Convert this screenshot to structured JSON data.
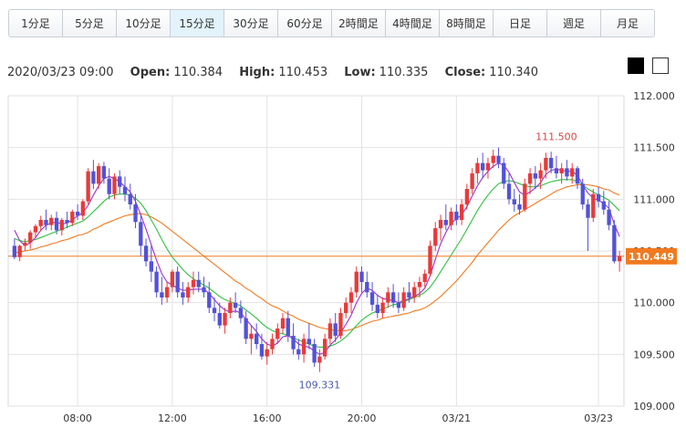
{
  "timeframe_tabs": [
    {
      "label": "1分足"
    },
    {
      "label": "5分足"
    },
    {
      "label": "10分足"
    },
    {
      "label": "15分足"
    },
    {
      "label": "30分足"
    },
    {
      "label": "60分足"
    },
    {
      "label": "2時間足"
    },
    {
      "label": "4時間足"
    },
    {
      "label": "8時間足"
    },
    {
      "label": "日足"
    },
    {
      "label": "週足"
    },
    {
      "label": "月足"
    }
  ],
  "active_tab_index": 3,
  "ohlc": {
    "datetime": "2020/03/23 09:00",
    "open_label": "Open:",
    "open": "110.384",
    "high_label": "High:",
    "high": "110.453",
    "low_label": "Low:",
    "low": "110.335",
    "close_label": "Close:",
    "close": "110.340"
  },
  "theme_buttons": {
    "dark": "#000000",
    "light": "#ffffff"
  },
  "chart_data": {
    "type": "candlestick",
    "ylim": [
      109.0,
      112.0
    ],
    "y_ticks": [
      "112.000",
      "111.500",
      "111.000",
      "110.500",
      "110.000",
      "109.500",
      "109.000"
    ],
    "x_ticks": [
      "08:00",
      "12:00",
      "16:00",
      "20:00",
      "03/21",
      "03/23"
    ],
    "current_price": "110.449",
    "annotations": [
      {
        "text": "111.500",
        "bar": 103,
        "y": 111.5
      },
      {
        "text": "109.331",
        "bar": 58,
        "y": 109.331
      }
    ],
    "colors": {
      "up": "#e83a3a",
      "down": "#5252d8",
      "current_line": "#f07a20",
      "ma_fast": "#9b30d0",
      "ma_mid": "#30c040",
      "ma_slow": "#f07a20"
    },
    "candles": [
      [
        110.55,
        110.62,
        110.42,
        110.44
      ],
      [
        110.44,
        110.56,
        110.4,
        110.55
      ],
      [
        110.55,
        110.62,
        110.5,
        110.58
      ],
      [
        110.58,
        110.7,
        110.52,
        110.68
      ],
      [
        110.68,
        110.76,
        110.62,
        110.74
      ],
      [
        110.74,
        110.84,
        110.69,
        110.8
      ],
      [
        110.8,
        110.9,
        110.7,
        110.75
      ],
      [
        110.75,
        110.85,
        110.7,
        110.82
      ],
      [
        110.82,
        110.88,
        110.66,
        110.7
      ],
      [
        110.7,
        110.82,
        110.65,
        110.8
      ],
      [
        110.8,
        110.88,
        110.72,
        110.77
      ],
      [
        110.77,
        110.9,
        110.74,
        110.88
      ],
      [
        110.88,
        110.95,
        110.8,
        110.84
      ],
      [
        110.84,
        111.0,
        110.8,
        110.98
      ],
      [
        110.98,
        111.3,
        110.95,
        111.27
      ],
      [
        111.27,
        111.38,
        111.1,
        111.15
      ],
      [
        111.15,
        111.35,
        111.1,
        111.32
      ],
      [
        111.32,
        111.36,
        111.15,
        111.2
      ],
      [
        111.2,
        111.3,
        111.0,
        111.05
      ],
      [
        111.05,
        111.25,
        111.0,
        111.22
      ],
      [
        111.22,
        111.28,
        111.05,
        111.12
      ],
      [
        111.12,
        111.22,
        110.98,
        111.05
      ],
      [
        111.05,
        111.15,
        110.9,
        110.95
      ],
      [
        110.95,
        111.05,
        110.72,
        110.78
      ],
      [
        110.78,
        110.85,
        110.45,
        110.55
      ],
      [
        110.55,
        110.62,
        110.35,
        110.4
      ],
      [
        110.4,
        110.55,
        110.2,
        110.3
      ],
      [
        110.3,
        110.35,
        110.05,
        110.1
      ],
      [
        110.1,
        110.25,
        109.98,
        110.05
      ],
      [
        110.05,
        110.2,
        110.0,
        110.15
      ],
      [
        110.15,
        110.32,
        110.1,
        110.3
      ],
      [
        110.3,
        110.35,
        110.05,
        110.1
      ],
      [
        110.1,
        110.2,
        109.98,
        110.05
      ],
      [
        110.05,
        110.2,
        110.0,
        110.15
      ],
      [
        110.15,
        110.3,
        110.08,
        110.22
      ],
      [
        110.22,
        110.3,
        110.1,
        110.15
      ],
      [
        110.15,
        110.25,
        110.05,
        110.1
      ],
      [
        110.1,
        110.2,
        109.9,
        109.95
      ],
      [
        109.95,
        110.05,
        109.82,
        109.9
      ],
      [
        109.9,
        110.0,
        109.75,
        109.78
      ],
      [
        109.78,
        109.95,
        109.7,
        109.9
      ],
      [
        109.9,
        110.05,
        109.85,
        110.0
      ],
      [
        110.0,
        110.1,
        109.9,
        109.95
      ],
      [
        109.95,
        110.02,
        109.8,
        109.85
      ],
      [
        109.85,
        109.92,
        109.6,
        109.65
      ],
      [
        109.65,
        109.78,
        109.5,
        109.7
      ],
      [
        109.7,
        109.8,
        109.55,
        109.6
      ],
      [
        109.6,
        109.7,
        109.45,
        109.48
      ],
      [
        109.48,
        109.62,
        109.4,
        109.55
      ],
      [
        109.55,
        109.7,
        109.5,
        109.65
      ],
      [
        109.65,
        109.8,
        109.6,
        109.75
      ],
      [
        109.75,
        109.9,
        109.7,
        109.85
      ],
      [
        109.85,
        109.92,
        109.62,
        109.68
      ],
      [
        109.68,
        109.8,
        109.5,
        109.55
      ],
      [
        109.55,
        109.65,
        109.45,
        109.5
      ],
      [
        109.5,
        109.7,
        109.42,
        109.65
      ],
      [
        109.65,
        109.8,
        109.55,
        109.6
      ],
      [
        109.6,
        109.65,
        109.38,
        109.42
      ],
      [
        109.42,
        109.55,
        109.331,
        109.48
      ],
      [
        109.48,
        109.7,
        109.45,
        109.65
      ],
      [
        109.65,
        109.85,
        109.6,
        109.8
      ],
      [
        109.8,
        109.9,
        109.62,
        109.68
      ],
      [
        109.68,
        109.95,
        109.65,
        109.9
      ],
      [
        109.9,
        110.05,
        109.85,
        110.0
      ],
      [
        110.0,
        110.15,
        109.9,
        110.1
      ],
      [
        110.1,
        110.35,
        110.05,
        110.3
      ],
      [
        110.3,
        110.35,
        110.1,
        110.2
      ],
      [
        110.2,
        110.3,
        110.05,
        110.1
      ],
      [
        110.1,
        110.2,
        109.92,
        109.98
      ],
      [
        109.98,
        110.08,
        109.85,
        109.9
      ],
      [
        109.9,
        110.05,
        109.85,
        110.0
      ],
      [
        110.0,
        110.15,
        109.95,
        110.1
      ],
      [
        110.1,
        110.18,
        109.95,
        110.0
      ],
      [
        110.0,
        110.1,
        109.9,
        109.95
      ],
      [
        109.95,
        110.15,
        109.92,
        110.1
      ],
      [
        110.1,
        110.2,
        110.0,
        110.05
      ],
      [
        110.05,
        110.2,
        110.0,
        110.15
      ],
      [
        110.15,
        110.25,
        110.05,
        110.2
      ],
      [
        110.2,
        110.32,
        110.15,
        110.28
      ],
      [
        110.28,
        110.6,
        110.25,
        110.55
      ],
      [
        110.55,
        110.78,
        110.5,
        110.72
      ],
      [
        110.72,
        110.85,
        110.6,
        110.8
      ],
      [
        110.8,
        110.95,
        110.7,
        110.75
      ],
      [
        110.75,
        110.92,
        110.7,
        110.88
      ],
      [
        110.88,
        110.95,
        110.75,
        110.8
      ],
      [
        110.8,
        111.0,
        110.75,
        110.95
      ],
      [
        110.95,
        111.15,
        110.9,
        111.1
      ],
      [
        111.1,
        111.3,
        111.05,
        111.25
      ],
      [
        111.25,
        111.4,
        111.15,
        111.35
      ],
      [
        111.35,
        111.45,
        111.2,
        111.28
      ],
      [
        111.28,
        111.4,
        111.2,
        111.35
      ],
      [
        111.35,
        111.48,
        111.3,
        111.42
      ],
      [
        111.42,
        111.5,
        111.3,
        111.35
      ],
      [
        111.35,
        111.4,
        111.1,
        111.15
      ],
      [
        111.15,
        111.25,
        110.95,
        111.0
      ],
      [
        111.0,
        111.1,
        110.88,
        110.95
      ],
      [
        110.95,
        111.05,
        110.85,
        110.9
      ],
      [
        110.9,
        111.2,
        110.88,
        111.15
      ],
      [
        111.15,
        111.3,
        111.05,
        111.25
      ],
      [
        111.25,
        111.32,
        111.1,
        111.2
      ],
      [
        111.2,
        111.35,
        111.1,
        111.28
      ],
      [
        111.28,
        111.45,
        111.2,
        111.4
      ],
      [
        111.4,
        111.46,
        111.25,
        111.3
      ],
      [
        111.3,
        111.42,
        111.2,
        111.25
      ],
      [
        111.25,
        111.35,
        111.15,
        111.3
      ],
      [
        111.3,
        111.38,
        111.18,
        111.22
      ],
      [
        111.22,
        111.35,
        111.15,
        111.3
      ],
      [
        111.3,
        111.32,
        111.1,
        111.15
      ],
      [
        111.15,
        111.2,
        110.9,
        110.95
      ],
      [
        110.95,
        111.0,
        110.5,
        110.82
      ],
      [
        110.82,
        111.1,
        110.78,
        111.05
      ],
      [
        111.05,
        111.12,
        110.92,
        110.98
      ],
      [
        110.98,
        111.08,
        110.85,
        110.9
      ],
      [
        110.9,
        110.98,
        110.7,
        110.75
      ],
      [
        110.75,
        110.8,
        110.38,
        110.4
      ],
      [
        110.4,
        110.5,
        110.3,
        110.45
      ]
    ],
    "ma_fast": [
      110.7,
      110.6,
      110.55,
      110.58,
      110.63,
      110.7,
      110.75,
      110.77,
      110.78,
      110.76,
      110.77,
      110.8,
      110.84,
      110.87,
      110.94,
      111.04,
      111.13,
      111.2,
      111.22,
      111.2,
      111.17,
      111.12,
      111.07,
      110.98,
      110.85,
      110.71,
      110.56,
      110.41,
      110.28,
      110.2,
      110.17,
      110.14,
      110.12,
      110.12,
      110.13,
      110.13,
      110.13,
      110.09,
      110.03,
      109.97,
      109.93,
      109.91,
      109.92,
      109.9,
      109.84,
      109.78,
      109.72,
      109.65,
      109.6,
      109.58,
      109.61,
      109.67,
      109.68,
      109.65,
      109.6,
      109.58,
      109.57,
      109.53,
      109.5,
      109.52,
      109.59,
      109.64,
      109.71,
      109.79,
      109.88,
      110.0,
      110.09,
      110.14,
      110.12,
      110.07,
      110.04,
      110.03,
      110.02,
      110.0,
      110.02,
      110.04,
      110.06,
      110.09,
      110.14,
      110.26,
      110.42,
      110.57,
      110.68,
      110.77,
      110.81,
      110.85,
      110.93,
      111.03,
      111.13,
      111.21,
      111.27,
      111.32,
      111.35,
      111.33,
      111.26,
      111.16,
      111.07,
      111.04,
      111.07,
      111.11,
      111.16,
      111.24,
      111.28,
      111.29,
      111.28,
      111.27,
      111.27,
      111.23,
      111.14,
      111.06,
      111.01,
      110.99,
      110.96,
      110.91,
      110.76,
      110.64
    ],
    "ma_mid": [
      110.62,
      110.6,
      110.59,
      110.6,
      110.61,
      110.63,
      110.65,
      110.67,
      110.69,
      110.71,
      110.73,
      110.75,
      110.77,
      110.79,
      110.83,
      110.88,
      110.93,
      110.98,
      111.02,
      111.04,
      111.05,
      111.05,
      111.04,
      111.01,
      110.96,
      110.89,
      110.8,
      110.71,
      110.61,
      110.52,
      110.44,
      110.38,
      110.32,
      110.27,
      110.23,
      110.2,
      110.17,
      110.14,
      110.1,
      110.06,
      110.03,
      110.01,
      109.99,
      109.97,
      109.93,
      109.89,
      109.85,
      109.8,
      109.76,
      109.73,
      109.71,
      109.7,
      109.68,
      109.66,
      109.64,
      109.62,
      109.6,
      109.58,
      109.57,
      109.57,
      109.58,
      109.6,
      109.63,
      109.67,
      109.72,
      109.78,
      109.83,
      109.87,
      109.9,
      109.92,
      109.94,
      109.96,
      109.98,
      109.99,
      110.01,
      110.03,
      110.05,
      110.07,
      110.1,
      110.15,
      110.22,
      110.3,
      110.38,
      110.46,
      110.54,
      110.62,
      110.71,
      110.8,
      110.89,
      110.97,
      111.04,
      111.1,
      111.15,
      111.17,
      111.18,
      111.17,
      111.15,
      111.13,
      111.12,
      111.12,
      111.13,
      111.15,
      111.17,
      111.18,
      111.19,
      111.19,
      111.19,
      111.17,
      111.14,
      111.1,
      111.07,
      111.04,
      111.02,
      110.99,
      110.94,
      110.89
    ],
    "ma_slow": [
      110.48,
      110.49,
      110.5,
      110.51,
      110.52,
      110.54,
      110.55,
      110.57,
      110.58,
      110.6,
      110.61,
      110.63,
      110.65,
      110.66,
      110.68,
      110.71,
      110.73,
      110.76,
      110.78,
      110.8,
      110.82,
      110.84,
      110.85,
      110.86,
      110.86,
      110.85,
      110.83,
      110.8,
      110.77,
      110.73,
      110.69,
      110.65,
      110.61,
      110.57,
      110.53,
      110.49,
      110.45,
      110.41,
      110.37,
      110.33,
      110.29,
      110.25,
      110.21,
      110.18,
      110.14,
      110.11,
      110.07,
      110.04,
      110.0,
      109.97,
      109.95,
      109.92,
      109.89,
      109.87,
      109.84,
      109.82,
      109.8,
      109.78,
      109.76,
      109.75,
      109.74,
      109.73,
      109.73,
      109.73,
      109.74,
      109.76,
      109.78,
      109.8,
      109.82,
      109.83,
      109.85,
      109.86,
      109.87,
      109.88,
      109.89,
      109.9,
      109.92,
      109.93,
      109.95,
      109.98,
      110.02,
      110.06,
      110.11,
      110.16,
      110.21,
      110.27,
      110.33,
      110.39,
      110.46,
      110.52,
      110.58,
      110.64,
      110.7,
      110.75,
      110.8,
      110.84,
      110.87,
      110.9,
      110.93,
      110.96,
      110.99,
      111.02,
      111.05,
      111.08,
      111.1,
      111.12,
      111.13,
      111.14,
      111.14,
      111.14,
      111.13,
      111.12,
      111.1,
      111.09,
      111.06,
      111.04
    ]
  }
}
